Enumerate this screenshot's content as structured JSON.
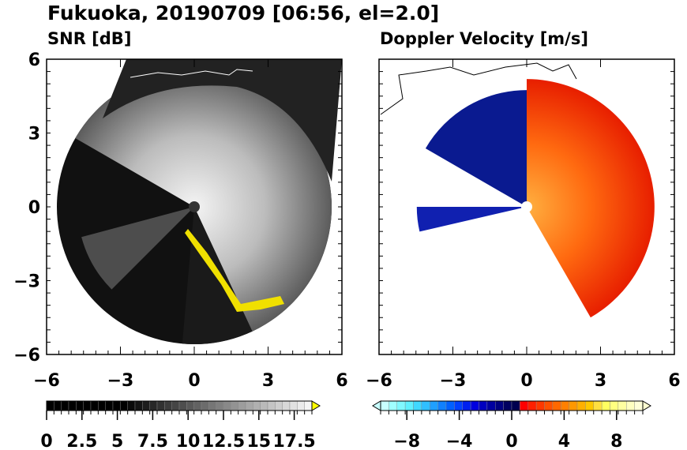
{
  "title": "Fukuoka, 20190709 [06:56, el=2.0]",
  "chart_data": [
    {
      "type": "heatmap",
      "title": "SNR [dB]",
      "xlim": [
        -6,
        6
      ],
      "ylim": [
        -6,
        6
      ],
      "xticks": [
        "-6",
        "-3",
        "0",
        "3",
        "6"
      ],
      "yticks": [
        "6",
        "3",
        "0",
        "-3",
        "-6"
      ],
      "colorbar": {
        "min": 0,
        "max": 18.75,
        "ticks": [
          "0",
          "2.5",
          "5",
          "7.5",
          "10",
          "12.5",
          "15",
          "17.5"
        ],
        "ext_color": "#ffff00",
        "colormap": "grayscale"
      }
    },
    {
      "type": "heatmap",
      "title": "Doppler Velocity [m/s]",
      "xlim": [
        -6,
        6
      ],
      "ylim": [
        -6,
        6
      ],
      "xticks": [
        "-6",
        "-3",
        "0",
        "3",
        "6"
      ],
      "yticks": [],
      "colorbar": {
        "min": -10,
        "max": 10,
        "ticks": [
          "-8",
          "-4",
          "0",
          "4",
          "8"
        ],
        "colormap": "cyan-blue-navy | red-orange-yellow"
      }
    }
  ]
}
